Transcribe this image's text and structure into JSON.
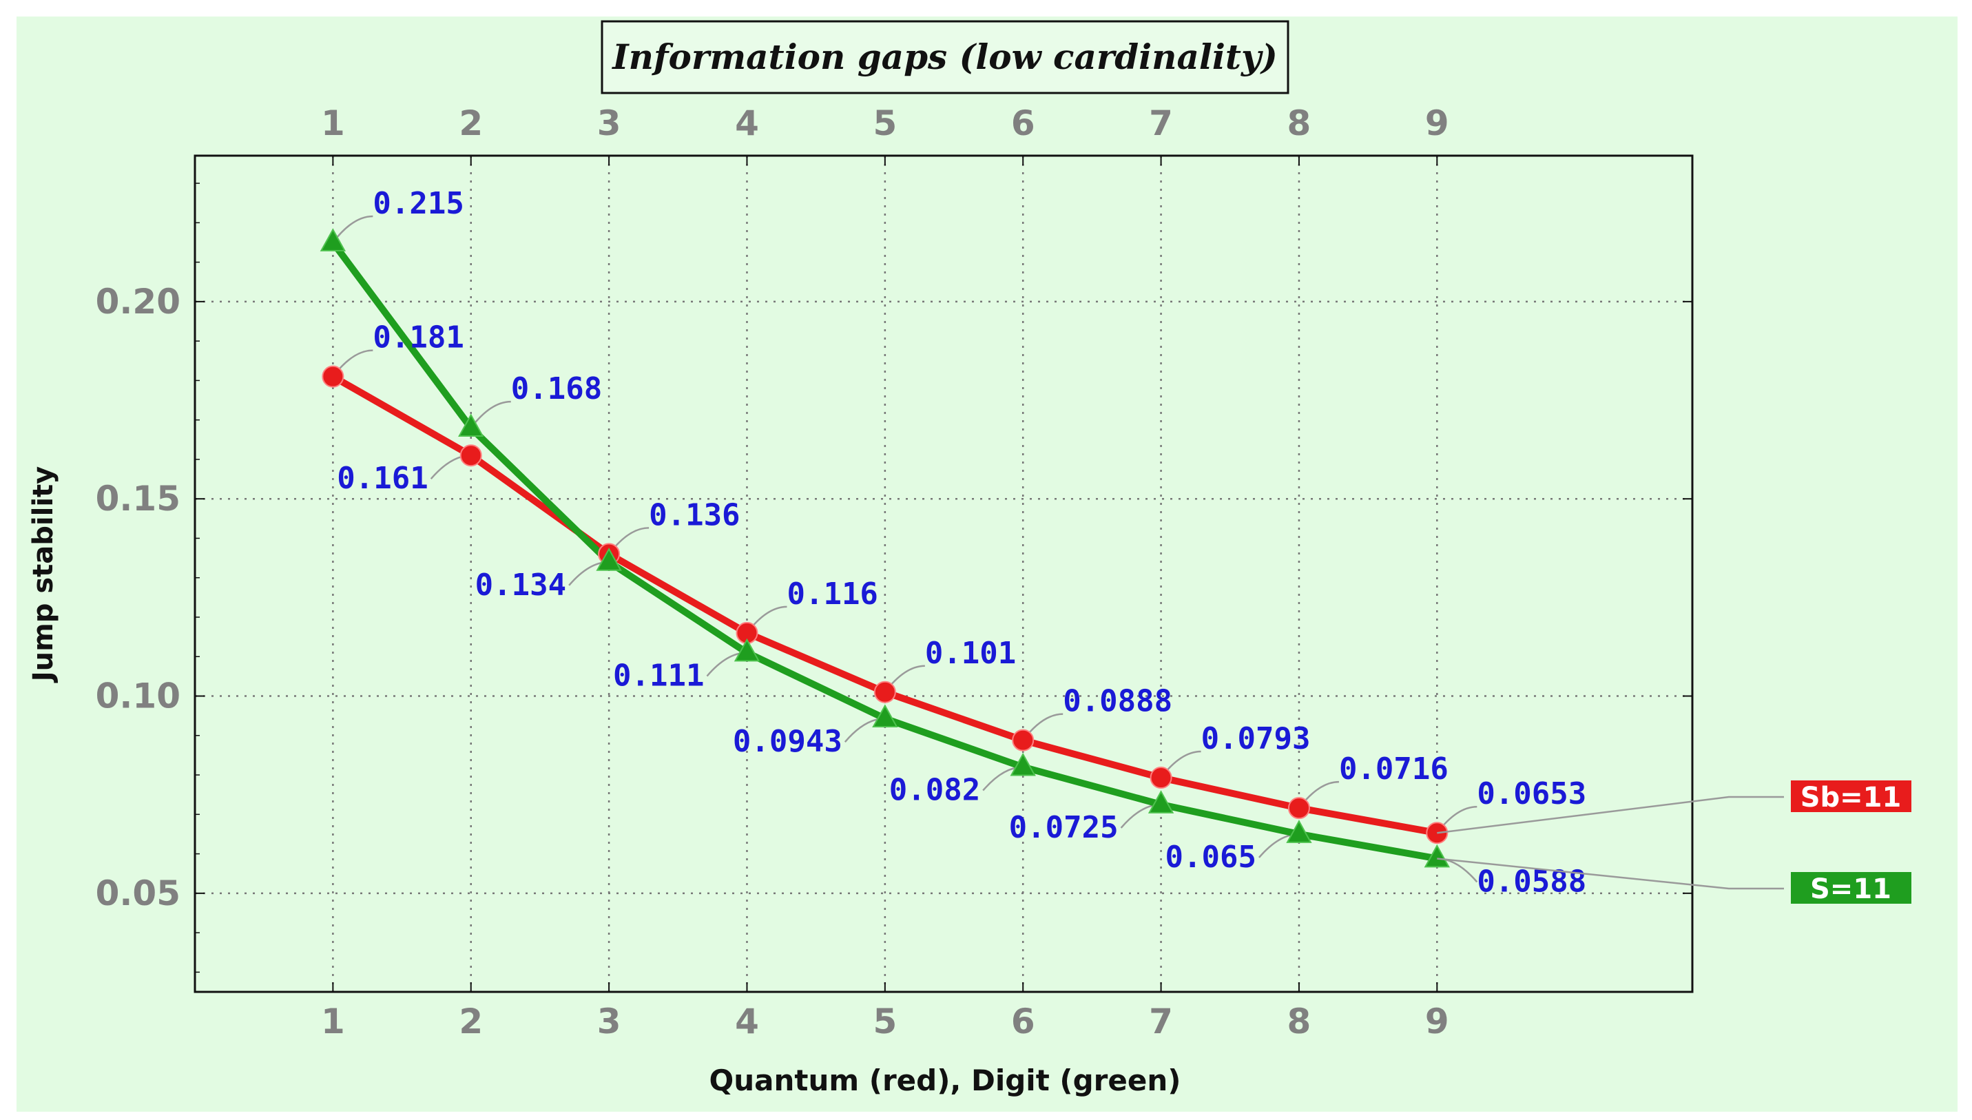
{
  "chart_data": {
    "type": "line",
    "title": "Information gaps (low cardinality)",
    "xlabel": "Quantum (red), Digit (green)",
    "ylabel": "Jump stability",
    "x": [
      1,
      2,
      3,
      4,
      5,
      6,
      7,
      8,
      9
    ],
    "x_ticks": [
      "1",
      "2",
      "3",
      "4",
      "5",
      "6",
      "7",
      "8",
      "9"
    ],
    "y_ticks": [
      "0.05",
      "0.10",
      "0.15",
      "0.20"
    ],
    "xlim": [
      0,
      10.85
    ],
    "ylim": [
      0.025,
      0.237
    ],
    "grid": true,
    "legend": "right",
    "series": [
      {
        "name": "Sb=11",
        "color": "#e81c1c",
        "marker": "circle",
        "values": [
          0.181,
          0.161,
          0.136,
          0.116,
          0.101,
          0.0888,
          0.0793,
          0.0716,
          0.0653
        ],
        "labels": [
          "0.181",
          "0.161",
          "0.136",
          "0.116",
          "0.101",
          "0.0888",
          "0.0793",
          "0.0716",
          "0.0653"
        ]
      },
      {
        "name": "S=11",
        "color": "#1f9e1f",
        "marker": "triangle",
        "values": [
          0.215,
          0.168,
          0.134,
          0.111,
          0.0943,
          0.082,
          0.0725,
          0.065,
          0.0588
        ],
        "labels": [
          "0.215",
          "0.168",
          "0.134",
          "0.111",
          "0.0943",
          "0.082",
          "0.0725",
          "0.065",
          "0.0588"
        ]
      }
    ]
  },
  "colors": {
    "background": "#e2fbe2",
    "plot_border": "#111111",
    "grid": "#777777",
    "label_text": "#1a1ad6",
    "leader": "#9a9a9a"
  }
}
